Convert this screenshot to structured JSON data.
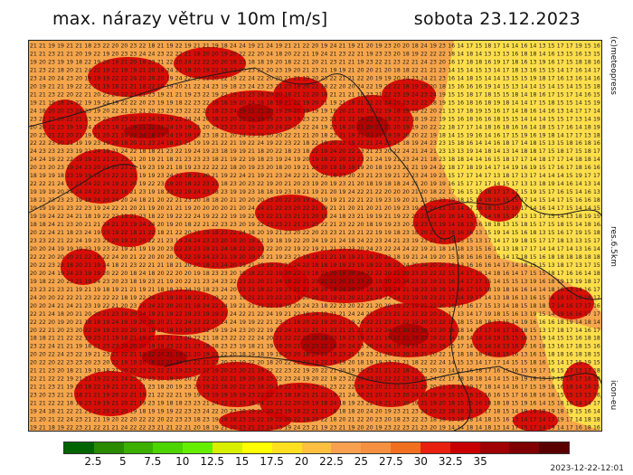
{
  "header": {
    "title": "max. nárazy větru v 10m [m/s]",
    "date": "sobota 23.12.2023"
  },
  "side_labels": {
    "provider": "(c)meteopress",
    "resolution": "res.6.5km",
    "model": "icon-eu"
  },
  "footer": {
    "run_timestamp": "2023-12-22-12:01"
  },
  "legend": {
    "colors": [
      "#006400",
      "#2a8a00",
      "#3cb000",
      "#4cd400",
      "#66ee00",
      "#d8f000",
      "#ffff00",
      "#ffe020",
      "#ffc040",
      "#f8a050",
      "#f49040",
      "#f07020",
      "#e82010",
      "#c80000",
      "#a00000",
      "#800000",
      "#5a0000"
    ],
    "ticks": [
      "2.5",
      "5",
      "7.5",
      "10",
      "12.5",
      "15",
      "17.5",
      "20",
      "22.5",
      "25",
      "27.5",
      "30",
      "32.5",
      "35"
    ]
  },
  "map": {
    "grid_rows": 48,
    "grid_cols": 63,
    "base_color": "#f7a54a",
    "high_color": "#d40000",
    "very_high_color": "#b00000",
    "low_color": "#ffe84a",
    "number_range": [
      13,
      25
    ]
  }
}
